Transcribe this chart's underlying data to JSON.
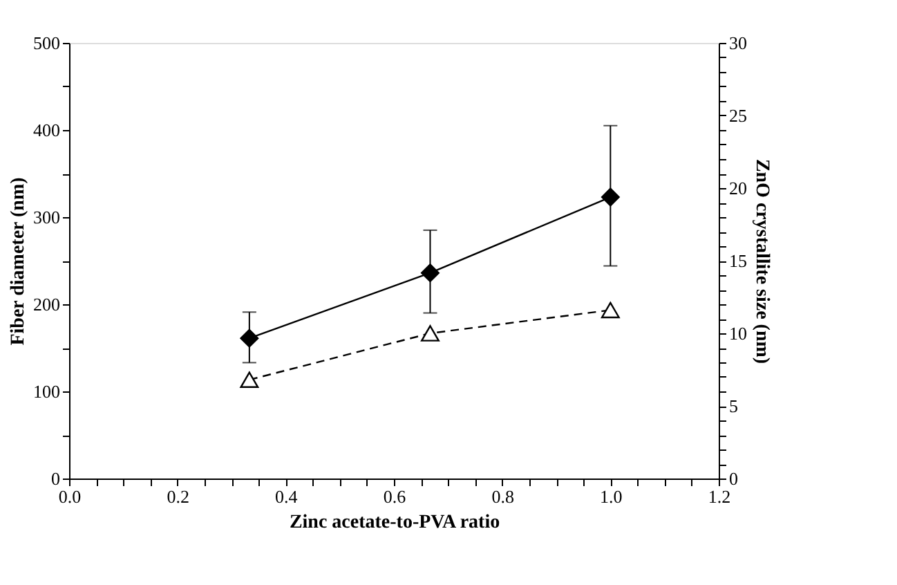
{
  "chart_data": {
    "type": "line",
    "xlabel": "Zinc acetate-to-PVA ratio",
    "ylabel": "Fiber diameter (nm)",
    "y2label": "ZnO crystallite size (nm)",
    "x": [
      0.333,
      0.667,
      1.0
    ],
    "series": [
      {
        "color": "#000000",
        "marker": "diamond",
        "line_style": "solid",
        "values": [
          161,
          236,
          323
        ],
        "errors": [
          [
            133,
            191
          ],
          [
            190,
            285
          ],
          [
            244,
            405
          ]
        ]
      },
      {
        "color": "#000000",
        "marker": "triangle",
        "line_style": "dashed",
        "axis": "y2",
        "values": [
          6.8,
          10.0,
          11.6
        ]
      }
    ],
    "xlim": [
      0,
      1.2
    ],
    "xticks": [
      {
        "value": 0,
        "label": "0.0"
      },
      {
        "value": 0.05,
        "label": null
      },
      {
        "value": 0.1,
        "label": null
      },
      {
        "value": 0.15,
        "label": null
      },
      {
        "value": 0.2,
        "label": "0.2"
      },
      {
        "value": 0.25,
        "label": null
      },
      {
        "value": 0.3,
        "label": null
      },
      {
        "value": 0.35,
        "label": null
      },
      {
        "value": 0.4,
        "label": "0.4"
      },
      {
        "value": 0.45,
        "label": null
      },
      {
        "value": 0.5,
        "label": null
      },
      {
        "value": 0.55,
        "label": null
      },
      {
        "value": 0.6,
        "label": "0.6"
      },
      {
        "value": 0.65,
        "label": null
      },
      {
        "value": 0.7,
        "label": null
      },
      {
        "value": 0.75,
        "label": null
      },
      {
        "value": 0.8,
        "label": "0.8"
      },
      {
        "value": 0.85,
        "label": null
      },
      {
        "value": 0.9,
        "label": null
      },
      {
        "value": 0.95,
        "label": null
      },
      {
        "value": 1.0,
        "label": "1.0"
      },
      {
        "value": 1.05,
        "label": null
      },
      {
        "value": 1.1,
        "label": null
      },
      {
        "value": 1.15,
        "label": null
      },
      {
        "value": 1.2,
        "label": "1.2"
      }
    ],
    "ylim": [
      0,
      500
    ],
    "yticks": [
      0,
      {
        "value": 50,
        "label": null
      },
      100,
      {
        "value": 150,
        "label": null
      },
      200,
      {
        "value": 250,
        "label": null
      },
      300,
      {
        "value": 350,
        "label": null
      },
      400,
      {
        "value": 450,
        "label": null
      },
      500
    ],
    "y2lim": [
      0,
      30
    ],
    "y2ticks": [
      0,
      {
        "value": 1,
        "label": null
      },
      {
        "value": 2,
        "label": null
      },
      {
        "value": 3,
        "label": null
      },
      {
        "value": 4,
        "label": null
      },
      5,
      {
        "value": 6,
        "label": null
      },
      {
        "value": 7,
        "label": null
      },
      {
        "value": 8,
        "label": null
      },
      {
        "value": 9,
        "label": null
      },
      10,
      {
        "value": 11,
        "label": null
      },
      {
        "value": 12,
        "label": null
      },
      {
        "value": 13,
        "label": null
      },
      {
        "value": 14,
        "label": null
      },
      15,
      {
        "value": 16,
        "label": null
      },
      {
        "value": 17,
        "label": null
      },
      {
        "value": 18,
        "label": null
      },
      {
        "value": 19,
        "label": null
      },
      20,
      {
        "value": 21,
        "label": null
      },
      {
        "value": 22,
        "label": null
      },
      {
        "value": 23,
        "label": null
      },
      {
        "value": 24,
        "label": null
      },
      25,
      {
        "value": 26,
        "label": null
      },
      {
        "value": 27,
        "label": null
      },
      {
        "value": 28,
        "label": null
      },
      {
        "value": 29,
        "label": null
      },
      30
    ],
    "grid": false
  }
}
